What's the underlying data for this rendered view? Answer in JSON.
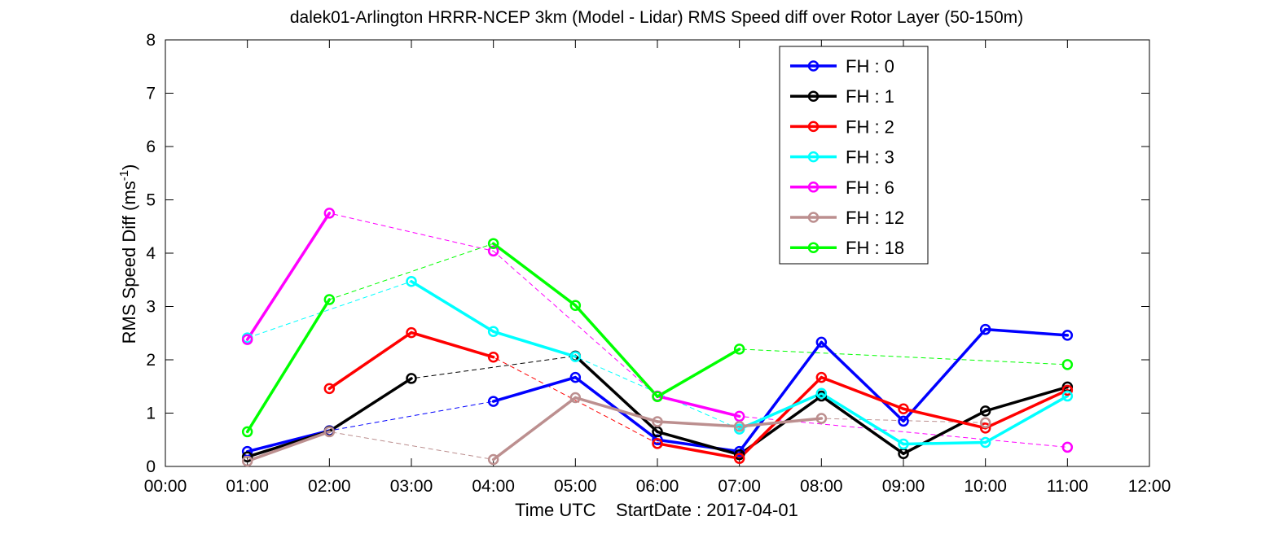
{
  "chart_data": {
    "type": "line",
    "title": "dalek01-Arlington HRRR-NCEP 3km (Model - Lidar) RMS Speed diff over Rotor Layer (50-150m)",
    "ylabel_main": "RMS Speed Diff (ms",
    "ylabel_sup": "-1",
    "ylabel_close": ")",
    "xlabel": "Time UTC    StartDate : 2017-04-01",
    "x_ticks": [
      "00:00",
      "01:00",
      "02:00",
      "03:00",
      "04:00",
      "05:00",
      "06:00",
      "07:00",
      "08:00",
      "09:00",
      "10:00",
      "11:00",
      "12:00"
    ],
    "y_ticks": [
      "0",
      "1",
      "2",
      "3",
      "4",
      "5",
      "6",
      "7",
      "8"
    ],
    "xlim": [
      0,
      12
    ],
    "ylim": [
      0,
      8
    ],
    "grid": false,
    "legend_position": "top-right",
    "series": [
      {
        "name": "FH : 0",
        "color": "#0000ff",
        "x": [
          1,
          2,
          4,
          5,
          6,
          7,
          8,
          9,
          10,
          11
        ],
        "y": [
          0.28,
          0.67,
          1.22,
          1.67,
          0.5,
          0.28,
          2.33,
          0.85,
          2.57,
          2.46
        ]
      },
      {
        "name": "FH : 1",
        "color": "#000000",
        "x": [
          1,
          2,
          3,
          5,
          6,
          7,
          8,
          9,
          10,
          11
        ],
        "y": [
          0.18,
          0.66,
          1.65,
          2.07,
          0.65,
          0.22,
          1.32,
          0.24,
          1.04,
          1.49
        ]
      },
      {
        "name": "FH : 2",
        "color": "#ff0000",
        "x": [
          2,
          3,
          4,
          6,
          7,
          8,
          9,
          10,
          11
        ],
        "y": [
          1.46,
          2.51,
          2.05,
          0.43,
          0.15,
          1.67,
          1.08,
          0.72,
          1.43
        ]
      },
      {
        "name": "FH : 3",
        "color": "#00ffff",
        "x": [
          1,
          3,
          4,
          5,
          7,
          8,
          9,
          10,
          11
        ],
        "y": [
          2.41,
          3.47,
          2.53,
          2.06,
          0.7,
          1.37,
          0.42,
          0.45,
          1.32
        ]
      },
      {
        "name": "FH : 6",
        "color": "#ff00ff",
        "x": [
          1,
          2,
          4,
          6,
          7,
          11
        ],
        "y": [
          2.38,
          4.75,
          4.04,
          1.32,
          0.94,
          0.36
        ]
      },
      {
        "name": "FH : 12",
        "color": "#bc8f8f",
        "x": [
          1,
          2,
          4,
          5,
          6,
          7,
          8,
          10
        ],
        "y": [
          0.1,
          0.65,
          0.13,
          1.29,
          0.84,
          0.75,
          0.9,
          0.82
        ]
      },
      {
        "name": "FH : 18",
        "color": "#00ff00",
        "x": [
          1,
          2,
          4,
          5,
          6,
          7,
          11
        ],
        "y": [
          0.65,
          3.13,
          4.18,
          3.02,
          1.31,
          2.2,
          1.91
        ]
      }
    ]
  }
}
